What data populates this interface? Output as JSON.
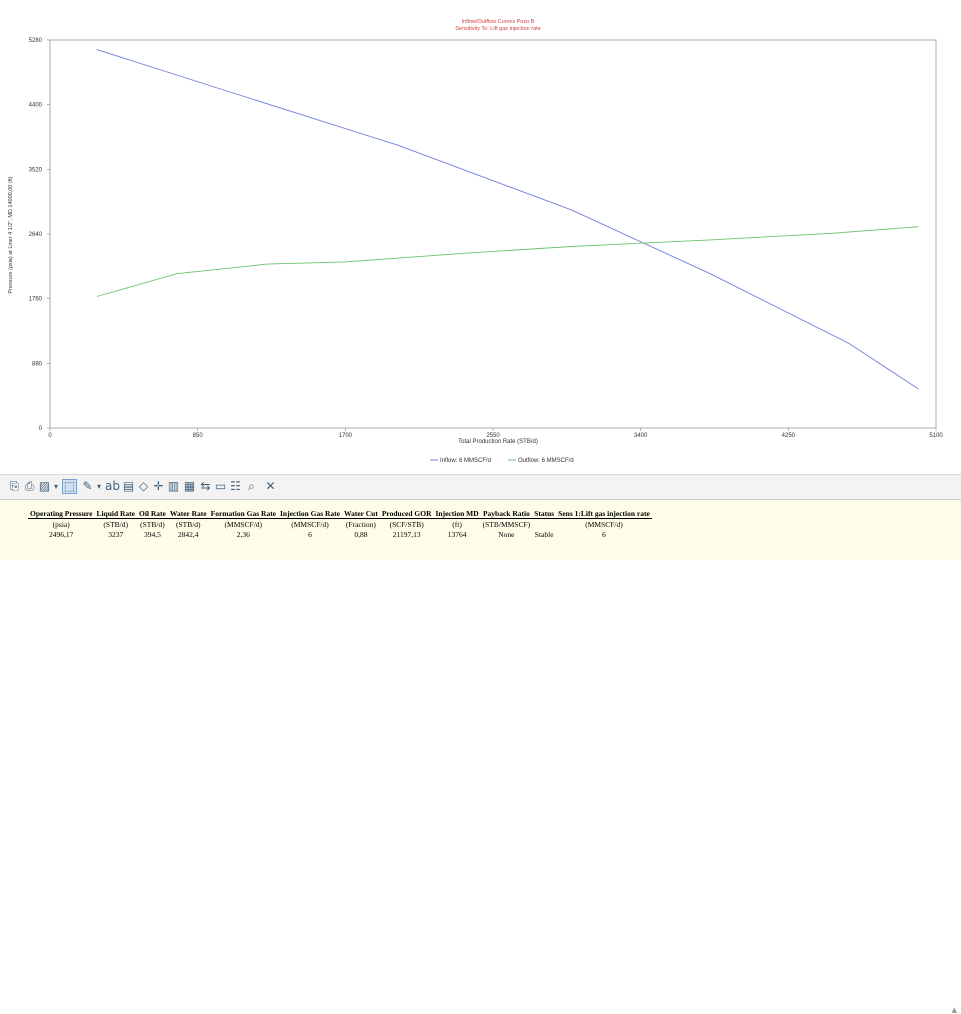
{
  "chart_data": {
    "type": "line",
    "title": "Inflow/Outflow Curves Pozo B",
    "subtitle": "Sensitivity To: Lift gas injection rate",
    "xlabel": "Total Production Rate (STB/d)",
    "ylabel": "Pressure (psia) at Liner 4 1/2\", MD 14000,00 (ft)",
    "xlim": [
      0,
      5100
    ],
    "ylim": [
      0,
      5280
    ],
    "x_ticks": [
      "0",
      "850",
      "1700",
      "2550",
      "3400",
      "4250",
      "5100"
    ],
    "y_ticks": [
      "0",
      "880",
      "1760",
      "2640",
      "3520",
      "4400",
      "5280"
    ],
    "grid": false,
    "legend_position": "bottom",
    "series": [
      {
        "name": "Inflow: 6 MMSCF/d",
        "color": "#6f7fe0",
        "x": [
          270,
          1000,
          2000,
          3000,
          3800,
          4600,
          5000
        ],
        "y": [
          5150,
          4600,
          3850,
          2970,
          2100,
          1150,
          530
        ]
      },
      {
        "name": "Outflow: 6 MMSCF/d",
        "color": "#6cc46c",
        "x": [
          270,
          730,
          1250,
          1700,
          2400,
          3000,
          3800,
          4500,
          5000
        ],
        "y": [
          1790,
          2100,
          2230,
          2260,
          2380,
          2470,
          2560,
          2650,
          2740
        ]
      }
    ]
  },
  "toolbar": {
    "icons": [
      "copy-icon",
      "print-icon",
      "chart-type-icon",
      "cursor-select-icon",
      "edit-icon",
      "text-label-icon",
      "table-view-icon",
      "pan-icon",
      "crosshair-icon",
      "export-icon",
      "chart-settings-icon",
      "data-table-icon",
      "legend-icon",
      "grid-icon",
      "zoom-icon",
      "pin-icon"
    ],
    "glyphs": [
      "⎘",
      "⎙",
      "▨",
      "▾",
      "⬚",
      "✎",
      "▾",
      "ab",
      "▤",
      "◇",
      "✛",
      "▥",
      "▦",
      "⇆",
      "▭",
      "☷",
      "⌕",
      "✕"
    ]
  },
  "results": {
    "headers": [
      "Operating Pressure",
      "Liquid Rate",
      "Oil Rate",
      "Water Rate",
      "Formation Gas Rate",
      "Injection Gas Rate",
      "Water Cut",
      "Produced GOR",
      "Injection MD",
      "Payback Ratio",
      "Status",
      "Sens 1:Lift gas injection rate"
    ],
    "units": [
      "(psia)",
      "(STB/d)",
      "(STB/d)",
      "(STB/d)",
      "(MMSCF/d)",
      "(MMSCF/d)",
      "(Fraction)",
      "(SCF/STB)",
      "(ft)",
      "(STB/MMSCF)",
      "",
      "(MMSCF/d)"
    ],
    "values": [
      "2496,17",
      "3237",
      "394,5",
      "2842,4",
      "2,36",
      "6",
      "0,88",
      "21197,13",
      "13764",
      "None",
      "Stable",
      "6"
    ],
    "scroll_glyph": "▲"
  }
}
